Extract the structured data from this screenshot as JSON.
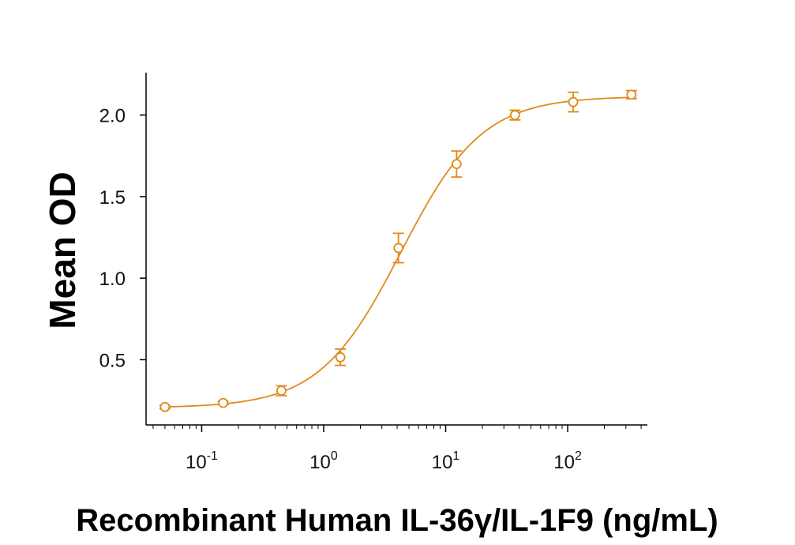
{
  "chart_data": {
    "type": "scatter",
    "xlabel": "Recombinant Human IL-36γ/IL-1F9 (ng/mL)",
    "ylabel": "Mean OD",
    "x_scale": "log",
    "xlim": [
      0.035,
      450
    ],
    "ylim": [
      0.1,
      2.26
    ],
    "x_ticks": [
      {
        "value": 0.1,
        "base": "10",
        "exp": "-1"
      },
      {
        "value": 1,
        "base": "10",
        "exp": "0"
      },
      {
        "value": 10,
        "base": "10",
        "exp": "1"
      },
      {
        "value": 100,
        "base": "10",
        "exp": "2"
      }
    ],
    "y_ticks": [
      {
        "value": 0.5,
        "label": "0.5"
      },
      {
        "value": 1.0,
        "label": "1.0"
      },
      {
        "value": 1.5,
        "label": "1.5"
      },
      {
        "value": 2.0,
        "label": "2.0"
      }
    ],
    "grid": false,
    "color": "#E08A1A",
    "points": [
      {
        "x": 0.05,
        "y": 0.21,
        "err": 0.01
      },
      {
        "x": 0.15,
        "y": 0.235,
        "err": 0.01
      },
      {
        "x": 0.45,
        "y": 0.31,
        "err": 0.03
      },
      {
        "x": 1.37,
        "y": 0.515,
        "err": 0.05
      },
      {
        "x": 4.1,
        "y": 1.185,
        "err": 0.09
      },
      {
        "x": 12.3,
        "y": 1.7,
        "err": 0.08
      },
      {
        "x": 37,
        "y": 2.0,
        "err": 0.03
      },
      {
        "x": 111,
        "y": 2.08,
        "err": 0.06
      },
      {
        "x": 333,
        "y": 2.125,
        "err": 0.025
      }
    ],
    "fit": {
      "bottom": 0.205,
      "top": 2.115,
      "ec50": 4.3,
      "hill": 1.3
    }
  }
}
